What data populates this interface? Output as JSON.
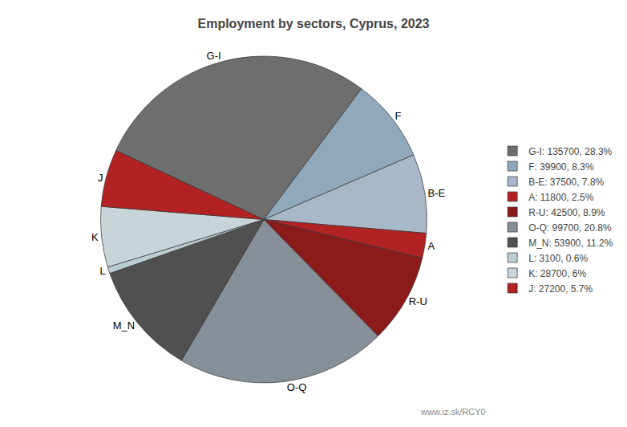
{
  "chart_data": {
    "type": "pie",
    "title": "Employment by sectors, Cyprus, 2023",
    "categories": [
      "G-I",
      "F",
      "B-E",
      "A",
      "R-U",
      "O-Q",
      "M_N",
      "L",
      "K",
      "J"
    ],
    "values": [
      135700,
      39900,
      37500,
      11800,
      42500,
      99700,
      53900,
      3100,
      28700,
      27200
    ],
    "colors": [
      "#6e6e6e",
      "#8fa8bc",
      "#a8b8c8",
      "#b22222",
      "#8b1a1a",
      "#878f98",
      "#505050",
      "#bcccd0",
      "#c8d4d8",
      "#b22222"
    ],
    "legend_labels": [
      "G-I: 135700, 28.3%",
      "F: 39900, 8.3%",
      "B-E: 37500, 7.8%",
      "A: 11800, 2.5%",
      "R-U: 42500, 8.9%",
      "O-Q: 99700, 20.8%",
      "M_N: 53900, 11.2%",
      "L: 3100, 0.6%",
      "K: 28700, 6%",
      "J: 27200, 5.7%"
    ],
    "legend": "right",
    "annotations": [
      "www.iz.sk/RCY0"
    ]
  }
}
